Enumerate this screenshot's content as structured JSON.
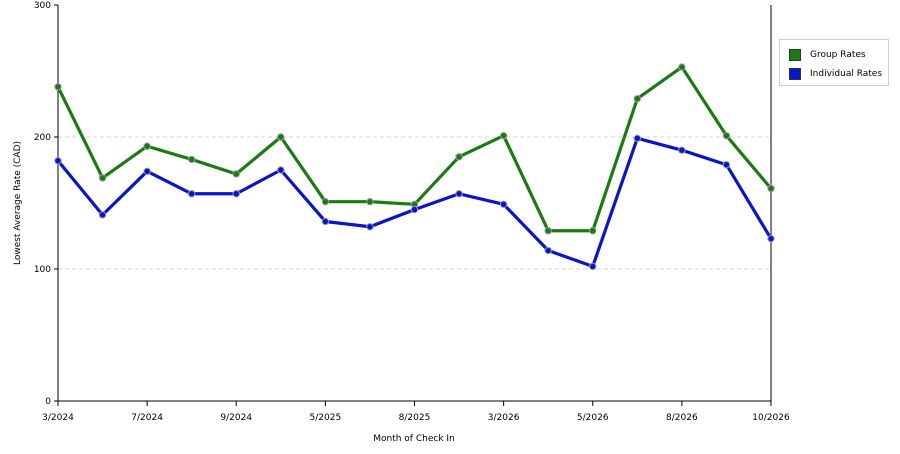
{
  "chart_data": {
    "type": "line",
    "xlabel": "Month of Check In",
    "ylabel": "Lowest Average Rate (CAD)",
    "ylim": [
      0,
      300
    ],
    "yticks": [
      0,
      100,
      200,
      300
    ],
    "x_tick_labels": [
      "3/2024",
      "7/2024",
      "9/2024",
      "5/2025",
      "8/2025",
      "3/2026",
      "5/2026",
      "8/2026",
      "10/2026"
    ],
    "x_tick_positions": [
      0,
      2,
      4,
      6,
      8,
      10,
      12,
      14,
      16
    ],
    "x_count": 17,
    "grid": "horizontal dashed",
    "legend_position": "right",
    "series": [
      {
        "name": "Group Rates",
        "color": "#1a7a14",
        "values": [
          238,
          169,
          193,
          183,
          172,
          200,
          151,
          151,
          149,
          185,
          201,
          129,
          129,
          229,
          253,
          201,
          161
        ]
      },
      {
        "name": "Individual Rates",
        "color": "#0a14c8",
        "values": [
          182,
          141,
          174,
          157,
          157,
          175,
          136,
          132,
          145,
          157,
          149,
          114,
          102,
          199,
          190,
          179,
          123
        ]
      }
    ]
  }
}
